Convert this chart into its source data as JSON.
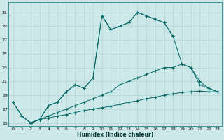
{
  "xlabel": "Humidex (Indice chaleur)",
  "bg_color": "#cce8e8",
  "grid_color": "#b0d4d4",
  "line_color": "#006666",
  "xlim": [
    -0.5,
    23.5
  ],
  "ylim": [
    14.5,
    32.5
  ],
  "xticks": [
    0,
    1,
    2,
    3,
    4,
    5,
    6,
    7,
    8,
    9,
    10,
    11,
    12,
    13,
    14,
    15,
    16,
    17,
    18,
    19,
    20,
    21,
    22,
    23
  ],
  "yticks": [
    15,
    17,
    19,
    21,
    23,
    25,
    27,
    29,
    31
  ],
  "curves": [
    {
      "x": [
        0,
        1,
        2,
        3,
        4,
        5,
        6,
        7,
        8,
        9,
        10,
        11,
        12,
        13,
        14,
        15,
        16,
        17,
        18
      ],
      "y": [
        18,
        16,
        15,
        15.5,
        17.5,
        18,
        19.5,
        20.5,
        20,
        21.5,
        30.5,
        28.5,
        29,
        29.5,
        31,
        30.5,
        30,
        29.5,
        27.5
      ]
    },
    {
      "x": [
        0,
        1,
        2,
        3,
        4,
        5,
        6,
        7,
        8,
        9,
        10,
        11,
        12,
        13,
        14,
        15,
        16,
        17,
        18,
        19,
        20,
        21,
        22,
        23
      ],
      "y": [
        18,
        16,
        15,
        15.5,
        17.5,
        18,
        19.5,
        20.5,
        20,
        21.5,
        30.5,
        28.5,
        29,
        29.5,
        31,
        30.5,
        30,
        29.5,
        27.5,
        23.5,
        23,
        20.5,
        20,
        19.5
      ]
    },
    {
      "x": [
        2,
        3,
        4,
        5,
        6,
        7,
        8,
        9,
        10,
        11,
        12,
        13,
        14,
        15,
        16,
        17,
        18,
        19,
        20,
        21,
        22,
        23
      ],
      "y": [
        15,
        15.5,
        16,
        16.5,
        17,
        17.5,
        18,
        18.5,
        19,
        19.5,
        20.5,
        21,
        21.5,
        22,
        22.5,
        23,
        23,
        23.5,
        23,
        21,
        20,
        19.5
      ]
    },
    {
      "x": [
        2,
        3,
        4,
        5,
        6,
        7,
        8,
        9,
        10,
        11,
        12,
        13,
        14,
        15,
        16,
        17,
        18,
        19,
        20,
        21,
        22,
        23
      ],
      "y": [
        15,
        15.5,
        15.7,
        16,
        16.2,
        16.5,
        16.8,
        17,
        17.2,
        17.4,
        17.7,
        18,
        18.2,
        18.5,
        18.7,
        19,
        19.2,
        19.4,
        19.5,
        19.6,
        19.5,
        19.5
      ]
    }
  ]
}
